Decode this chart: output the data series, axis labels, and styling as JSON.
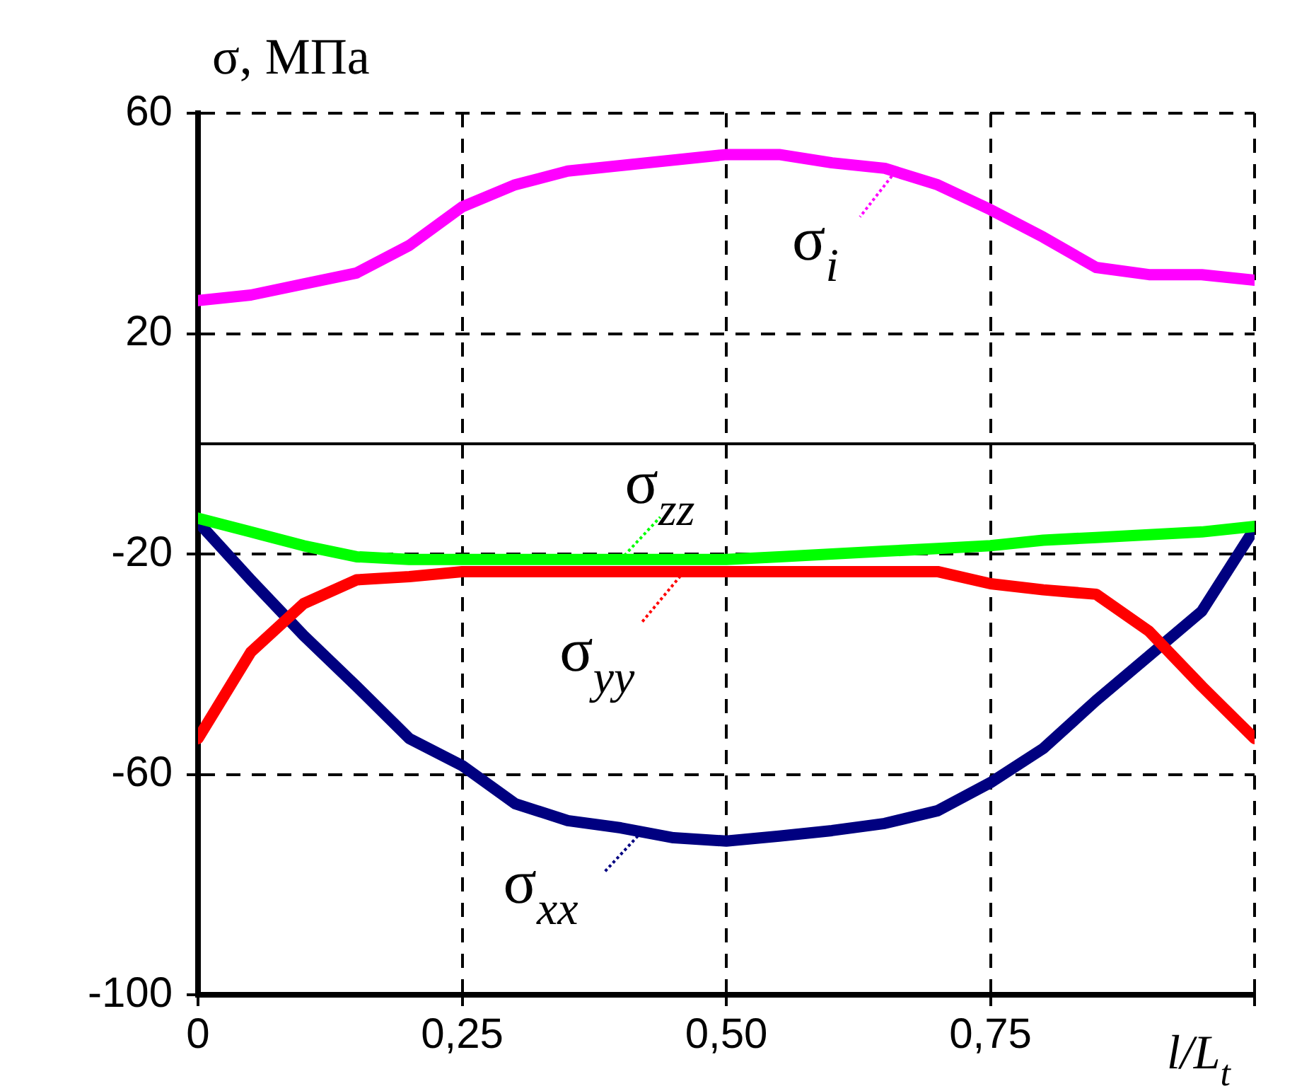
{
  "chart_data": {
    "type": "line",
    "ylabel": "σ, МПа",
    "xlabel": "l/L$_{t}$",
    "x": [
      0,
      0.05,
      0.1,
      0.15,
      0.2,
      0.25,
      0.3,
      0.35,
      0.4,
      0.45,
      0.5,
      0.55,
      0.6,
      0.65,
      0.7,
      0.75,
      0.8,
      0.85,
      0.9,
      0.95,
      1
    ],
    "series": [
      {
        "name": "σ$_{i}$",
        "color": "#ff00ff",
        "values": [
          26,
          27,
          29,
          31,
          36,
          43,
          47,
          49.5,
          50.5,
          51.5,
          52.5,
          52.5,
          51,
          50,
          47,
          42.5,
          37.5,
          32,
          30.7,
          30.7,
          29.7
        ]
      },
      {
        "name": "σ$_{zz}$",
        "color": "#00ff00",
        "values": [
          -13.5,
          -16,
          -18.5,
          -20.5,
          -21,
          -21,
          -21,
          -21,
          -21,
          -21,
          -21,
          -20.5,
          -20,
          -19.5,
          -19,
          -18.5,
          -17.5,
          -17,
          -16.5,
          -16,
          -15
        ]
      },
      {
        "name": "σ$_{yy}$",
        "color": "#ff0000",
        "values": [
          -53.5,
          -37.8,
          -29,
          -24.7,
          -24.1,
          -23.2,
          -23.2,
          -23.2,
          -23.2,
          -23.2,
          -23.2,
          -23.2,
          -23.2,
          -23.2,
          -23.2,
          -25.4,
          -26.5,
          -27.3,
          -34,
          -44,
          -53.5
        ]
      },
      {
        "name": "σ$_{xx}$",
        "color": "#000080",
        "values": [
          -14.2,
          -24.7,
          -34.8,
          -44,
          -53.5,
          -58.4,
          -65.3,
          -68.4,
          -69.7,
          -71.5,
          -72.1,
          -71.2,
          -70.2,
          -68.9,
          -66.6,
          -61.5,
          -55.3,
          -46.6,
          -38.5,
          -30.4,
          -15.4
        ]
      }
    ],
    "xlim": [
      0,
      1
    ],
    "ylim": [
      -100,
      60
    ],
    "xticks": [
      {
        "value": 0,
        "label": "0"
      },
      {
        "value": 0.25,
        "label": "0,25"
      },
      {
        "value": 0.5,
        "label": "0,50"
      },
      {
        "value": 0.75,
        "label": "0,75"
      },
      {
        "value": 1,
        "label": null
      }
    ],
    "yticks": [
      60,
      20,
      -20,
      -60,
      -100
    ],
    "ref_lines": [
      {
        "axis": "y",
        "value": 0,
        "color": "#000000"
      }
    ],
    "grid": true,
    "legend": "center",
    "marker": "none",
    "line_style": "solid"
  }
}
